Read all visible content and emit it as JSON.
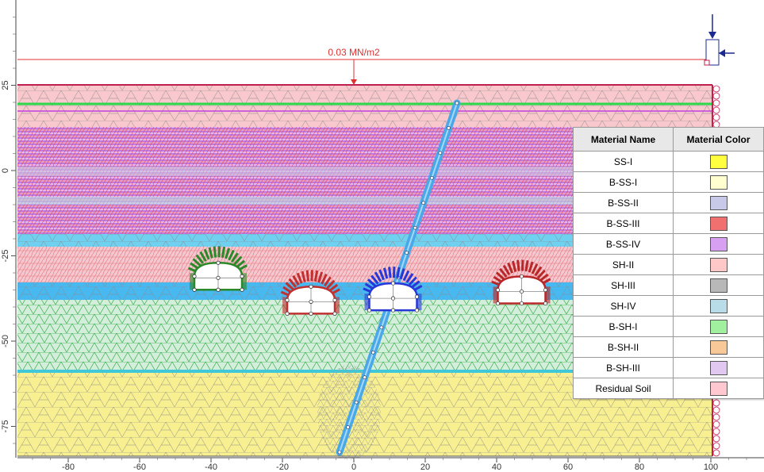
{
  "load_label": "0.03 MN/m2",
  "x_axis": {
    "ticks": [
      -80,
      -60,
      -40,
      -20,
      0,
      20,
      40,
      60,
      80,
      100
    ]
  },
  "y_axis": {
    "ticks": [
      25,
      0,
      -25,
      -50,
      -75
    ]
  },
  "legend": {
    "headers": [
      "Material Name",
      "Material Color"
    ],
    "rows": [
      {
        "name": "SS-I",
        "color": "#ffff40"
      },
      {
        "name": "B-SS-I",
        "color": "#ffffd0"
      },
      {
        "name": "B-SS-II",
        "color": "#c8c8e8"
      },
      {
        "name": "B-SS-III",
        "color": "#f07070"
      },
      {
        "name": "B-SS-IV",
        "color": "#d8a0f0"
      },
      {
        "name": "SH-II",
        "color": "#ffc8c8"
      },
      {
        "name": "SH-III",
        "color": "#b8b8b8"
      },
      {
        "name": "SH-IV",
        "color": "#b8dce8"
      },
      {
        "name": "B-SH-I",
        "color": "#a0f0a0"
      },
      {
        "name": "B-SH-II",
        "color": "#f8c898"
      },
      {
        "name": "B-SH-III",
        "color": "#e0c8f0"
      },
      {
        "name": "Residual Soil",
        "color": "#ffc8d0"
      }
    ]
  },
  "colors": {
    "residual": "#f8c8cc",
    "hatch_bands": "#c060e0",
    "lower_green": "#c8ecd8",
    "yellow_soil": "#f8f090",
    "cyan_band": "#40b8f0",
    "pile": "#48a8e8",
    "load_arrow": "#e03030"
  },
  "tunnels": [
    {
      "x": -38,
      "y": -31,
      "color": "#2a8a2a"
    },
    {
      "x": -12,
      "y": -38,
      "color": "#c03030"
    },
    {
      "x": 11,
      "y": -37,
      "color": "#2838d8"
    },
    {
      "x": 47,
      "y": -35,
      "color": "#b82828"
    }
  ]
}
